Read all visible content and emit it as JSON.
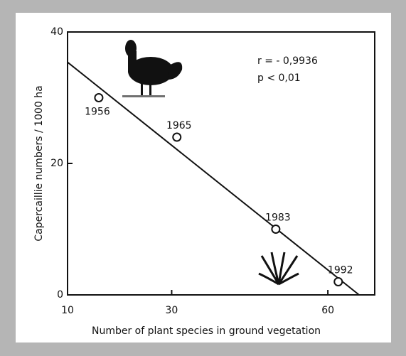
{
  "chart_data": {
    "type": "scatter",
    "xlabel": "Number of plant species in ground vegetation",
    "ylabel": "Capercaillie numbers / 1000 ha",
    "annotations": [
      "r = - 0,9936",
      "p <  0,01"
    ],
    "x": [
      16,
      31,
      50,
      62
    ],
    "values": [
      30,
      24,
      10,
      2
    ],
    "point_labels": [
      "1956",
      "1965",
      "1983",
      "1992"
    ],
    "fit_line": {
      "x": [
        10,
        66
      ],
      "values": [
        35.4,
        0
      ]
    },
    "xlim": [
      10,
      69
    ],
    "xticks": [
      10,
      30,
      60
    ],
    "ylim": [
      0,
      40
    ],
    "yticks": [
      0,
      20,
      40
    ],
    "color": "#111111"
  }
}
